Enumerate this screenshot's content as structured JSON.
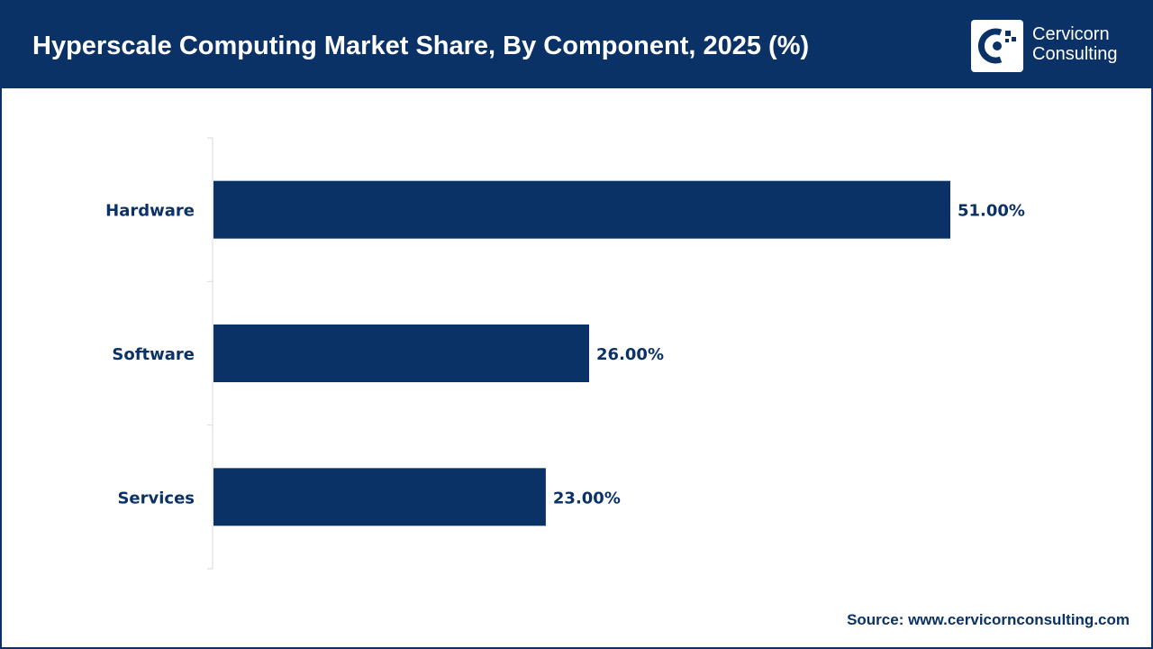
{
  "header": {
    "title": "Hyperscale Computing Market Share, By Component, 2025 (%)"
  },
  "logo": {
    "line1": "Cervicorn",
    "line2": "Consulting",
    "icon": "cervicorn-logo-icon"
  },
  "chart_data": {
    "type": "bar",
    "orientation": "horizontal",
    "title": "Hyperscale Computing Market Share, By Component, 2025 (%)",
    "categories": [
      "Hardware",
      "Software",
      "Services"
    ],
    "values": [
      51.0,
      26.0,
      23.0
    ],
    "value_labels": [
      "51.00%",
      "26.00%",
      "23.00%"
    ],
    "xlim": [
      0,
      55
    ],
    "grid": false,
    "bar_color": "#0b3266"
  },
  "footer": {
    "source": "Source: www.cervicornconsulting.com"
  },
  "colors": {
    "brand": "#0b3266",
    "background": "#ffffff"
  }
}
